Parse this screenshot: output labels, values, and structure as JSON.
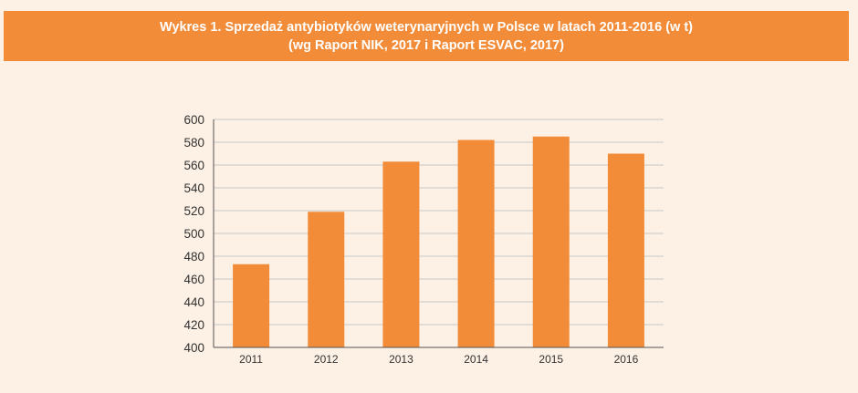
{
  "chart_data": {
    "type": "bar",
    "title": "Wykres 1. Sprzedaż antybiotyków weterynaryjnych w Polsce w latach 2011-2016 (w t)",
    "subtitle": "(wg Raport NIK, 2017 i Raport ESVAC, 2017)",
    "categories": [
      "2011",
      "2012",
      "2013",
      "2014",
      "2015",
      "2016"
    ],
    "values": [
      473,
      519,
      563,
      582,
      585,
      570
    ],
    "xlabel": "",
    "ylabel": "",
    "ylim": [
      400,
      600
    ],
    "yticks": [
      "400",
      "420",
      "440",
      "460",
      "480",
      "500",
      "520",
      "540",
      "560",
      "580",
      "600"
    ],
    "grid": true,
    "legend": "none"
  },
  "colors": {
    "banner": "#f28c38",
    "bar": "#f28c38",
    "background": "#fdf0e4",
    "grid": "#c8c8c8",
    "axis": "#555555"
  }
}
